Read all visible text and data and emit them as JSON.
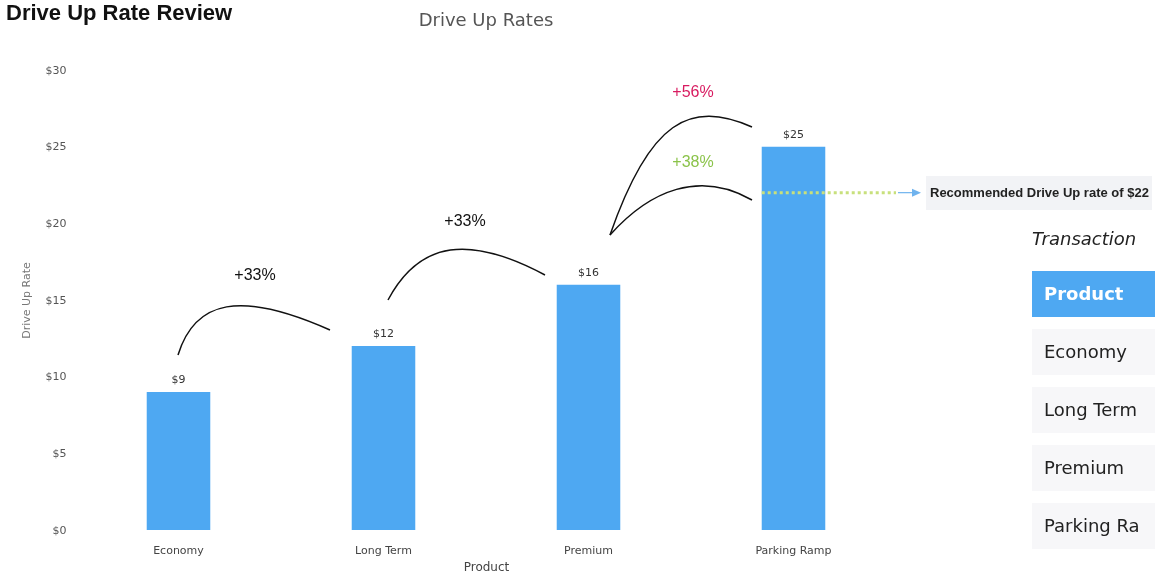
{
  "chart_data": [
    {
      "type": "bar",
      "title": "Drive Up Rate Review",
      "subtitle": "Drive Up Rates",
      "xlabel": "Product",
      "ylabel": "Drive Up Rate",
      "categories": [
        "Economy",
        "Long Term",
        "Premium",
        "Parking Ramp"
      ],
      "values": [
        9,
        12,
        16,
        25
      ],
      "value_labels": [
        "$9",
        "$12",
        "$16",
        "$25"
      ],
      "color": "#4ea8f2",
      "ylim": [
        0,
        30
      ],
      "yticks": [
        {
          "value": 0,
          "label": "$0"
        },
        {
          "value": 5,
          "label": "$5"
        },
        {
          "value": 10,
          "label": "$10"
        },
        {
          "value": 15,
          "label": "$15"
        },
        {
          "value": 20,
          "label": "$20"
        },
        {
          "value": 25,
          "label": "$25"
        },
        {
          "value": 30,
          "label": "$30"
        }
      ],
      "ref_lines": [
        {
          "axis": "y",
          "value": 22,
          "label": "Recommended Drive Up rate of $22",
          "color": "#c8e07c",
          "line_style": "dotted"
        }
      ],
      "annotations": [
        "+33%",
        "+33%",
        "+56%",
        "+38%"
      ]
    },
    {
      "type": "other",
      "title": "Transaction",
      "annotations": [
        "Product",
        "Economy",
        "Long Term",
        "Premium",
        "Parking Ra"
      ]
    }
  ]
}
